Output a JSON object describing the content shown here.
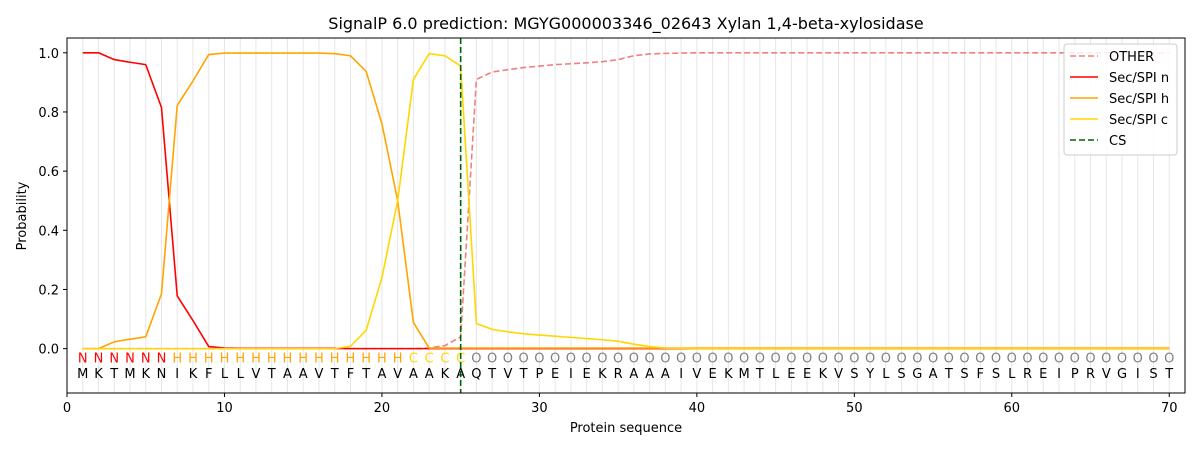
{
  "chart_data": {
    "type": "line",
    "title": "SignalP 6.0 prediction: MGYG000003346_02643 Xylan 1,4-beta-xylosidase",
    "xlabel": "Protein sequence",
    "ylabel": "Probability",
    "xlim": [
      0,
      71
    ],
    "ylim": [
      -0.15,
      1.05
    ],
    "xticks": [
      0,
      10,
      20,
      30,
      40,
      50,
      60,
      70
    ],
    "yticks": [
      0.0,
      0.2,
      0.4,
      0.6,
      0.8,
      1.0
    ],
    "legend_position": "top-right",
    "cleavage_site": 25,
    "sequence": "MKTMKNIKFLLVTAAVTFTAVAAKAQTVTPEIEKRAAAIVEKMTLEEKVSYLSGATSFSLREIPRVGIST",
    "region_labels": "NNNNNNHHHHHHHHHHHHHHHCCCCOOOOOOOOOOOOOOOOOOOOOOOOOOOOOOOOOOOOOOOOOOOOO",
    "region_colors": {
      "N": "#ff0000",
      "H": "#ffa500",
      "C": "#ffd700",
      "O": "#808080"
    },
    "series": [
      {
        "name": "OTHER",
        "color": "#f08080",
        "dash": true,
        "x": [
          1,
          2,
          3,
          4,
          5,
          6,
          7,
          8,
          9,
          10,
          11,
          12,
          13,
          14,
          15,
          16,
          17,
          18,
          19,
          20,
          21,
          22,
          23,
          24,
          25,
          26,
          27,
          28,
          29,
          30,
          31,
          32,
          33,
          34,
          35,
          36,
          37,
          38,
          39,
          40,
          41,
          42,
          43,
          44,
          45,
          46,
          47,
          48,
          49,
          50,
          51,
          52,
          53,
          54,
          55,
          56,
          57,
          58,
          59,
          60,
          61,
          62,
          63,
          64,
          65,
          66,
          67,
          68,
          69,
          70
        ],
        "values": [
          0,
          0,
          0,
          0,
          0,
          0,
          0,
          0,
          0,
          0,
          0,
          0,
          0,
          0,
          0,
          0,
          0,
          0,
          0,
          0,
          0,
          0,
          0.002,
          0.01,
          0.04,
          0.91,
          0.935,
          0.943,
          0.95,
          0.955,
          0.96,
          0.963,
          0.966,
          0.97,
          0.977,
          0.99,
          0.996,
          0.998,
          0.999,
          1,
          1,
          1,
          1,
          1,
          1,
          1,
          1,
          1,
          1,
          1,
          1,
          1,
          1,
          1,
          1,
          1,
          1,
          1,
          1,
          1,
          1,
          1,
          1,
          1,
          1,
          1,
          1,
          1,
          1,
          1
        ]
      },
      {
        "name": "Sec/SPI n",
        "color": "#ff0000",
        "dash": false,
        "x": [
          1,
          2,
          3,
          4,
          5,
          6,
          7,
          8,
          9,
          10,
          11,
          12,
          13,
          14,
          15,
          16,
          17,
          18,
          19,
          20,
          21,
          22,
          23,
          24,
          25,
          26,
          27,
          28,
          29,
          30,
          31,
          32,
          33,
          34,
          35,
          36,
          37,
          38,
          39,
          40,
          41,
          42,
          43,
          44,
          45,
          46,
          47,
          48,
          49,
          50,
          51,
          52,
          53,
          54,
          55,
          56,
          57,
          58,
          59,
          60,
          61,
          62,
          63,
          64,
          65,
          66,
          67,
          68,
          69,
          70
        ],
        "values": [
          1.0,
          1.0,
          0.977,
          0.968,
          0.96,
          0.815,
          0.178,
          0.095,
          0.007,
          0.002,
          0.001,
          0.001,
          0.001,
          0.001,
          0.001,
          0.001,
          0.001,
          0,
          0,
          0,
          0,
          0,
          0,
          0,
          0,
          0,
          0,
          0,
          0,
          0,
          0,
          0,
          0,
          0,
          0,
          0,
          0,
          0,
          0,
          0,
          0,
          0,
          0,
          0,
          0,
          0,
          0,
          0,
          0,
          0,
          0,
          0,
          0,
          0,
          0,
          0,
          0,
          0,
          0,
          0,
          0,
          0,
          0,
          0,
          0,
          0,
          0,
          0,
          0,
          0
        ]
      },
      {
        "name": "Sec/SPI h",
        "color": "#ffa500",
        "dash": false,
        "x": [
          1,
          2,
          3,
          4,
          5,
          6,
          7,
          8,
          9,
          10,
          11,
          12,
          13,
          14,
          15,
          16,
          17,
          18,
          19,
          20,
          21,
          22,
          23,
          24,
          25,
          26,
          27,
          28,
          29,
          30,
          31,
          32,
          33,
          34,
          35,
          36,
          37,
          38,
          39,
          40,
          41,
          42,
          43,
          44,
          45,
          46,
          47,
          48,
          49,
          50,
          51,
          52,
          53,
          54,
          55,
          56,
          57,
          58,
          59,
          60,
          61,
          62,
          63,
          64,
          65,
          66,
          67,
          68,
          69,
          70
        ],
        "values": [
          0,
          0,
          0.023,
          0.032,
          0.04,
          0.185,
          0.822,
          0.905,
          0.994,
          0.999,
          0.999,
          0.999,
          0.999,
          0.999,
          0.999,
          0.999,
          0.997,
          0.99,
          0.937,
          0.76,
          0.5,
          0.088,
          0.002,
          0.002,
          0.002,
          0.002,
          0.002,
          0.002,
          0.002,
          0.002,
          0.002,
          0.002,
          0.002,
          0.002,
          0.002,
          0.002,
          0.002,
          0.002,
          0.002,
          0.002,
          0.002,
          0.002,
          0.002,
          0.002,
          0.002,
          0.002,
          0.002,
          0.002,
          0.002,
          0.002,
          0.002,
          0.002,
          0.002,
          0.002,
          0.002,
          0.002,
          0.002,
          0.002,
          0.002,
          0.002,
          0.002,
          0.002,
          0.002,
          0.002,
          0.002,
          0.002,
          0.002,
          0.002,
          0.002,
          0.002
        ]
      },
      {
        "name": "Sec/SPI c",
        "color": "#ffd700",
        "dash": false,
        "x": [
          1,
          2,
          3,
          4,
          5,
          6,
          7,
          8,
          9,
          10,
          11,
          12,
          13,
          14,
          15,
          16,
          17,
          18,
          19,
          20,
          21,
          22,
          23,
          24,
          25,
          26,
          27,
          28,
          29,
          30,
          31,
          32,
          33,
          34,
          35,
          36,
          37,
          38,
          39,
          40,
          41,
          42,
          43,
          44,
          45,
          46,
          47,
          48,
          49,
          50,
          51,
          52,
          53,
          54,
          55,
          56,
          57,
          58,
          59,
          60,
          61,
          62,
          63,
          64,
          65,
          66,
          67,
          68,
          69,
          70
        ],
        "values": [
          0,
          0,
          0,
          0,
          0,
          0,
          0,
          0,
          0,
          0,
          0,
          0,
          0,
          0,
          0,
          0,
          0,
          0.008,
          0.062,
          0.24,
          0.5,
          0.91,
          0.997,
          0.99,
          0.955,
          0.085,
          0.065,
          0.057,
          0.05,
          0.046,
          0.042,
          0.038,
          0.034,
          0.03,
          0.025,
          0.015,
          0.007,
          0.002,
          0.001,
          0,
          0,
          0,
          0,
          0,
          0,
          0,
          0,
          0,
          0,
          0,
          0,
          0,
          0,
          0,
          0,
          0,
          0,
          0,
          0,
          0,
          0,
          0,
          0,
          0,
          0,
          0,
          0,
          0,
          0,
          0
        ]
      }
    ],
    "legend_entries": [
      {
        "label": "OTHER",
        "color": "#f08080",
        "dash": true
      },
      {
        "label": "Sec/SPI n",
        "color": "#ff0000",
        "dash": false
      },
      {
        "label": "Sec/SPI h",
        "color": "#ffa500",
        "dash": false
      },
      {
        "label": "Sec/SPI c",
        "color": "#ffd700",
        "dash": false
      },
      {
        "label": "CS",
        "color": "#006400",
        "dash": true
      }
    ]
  }
}
